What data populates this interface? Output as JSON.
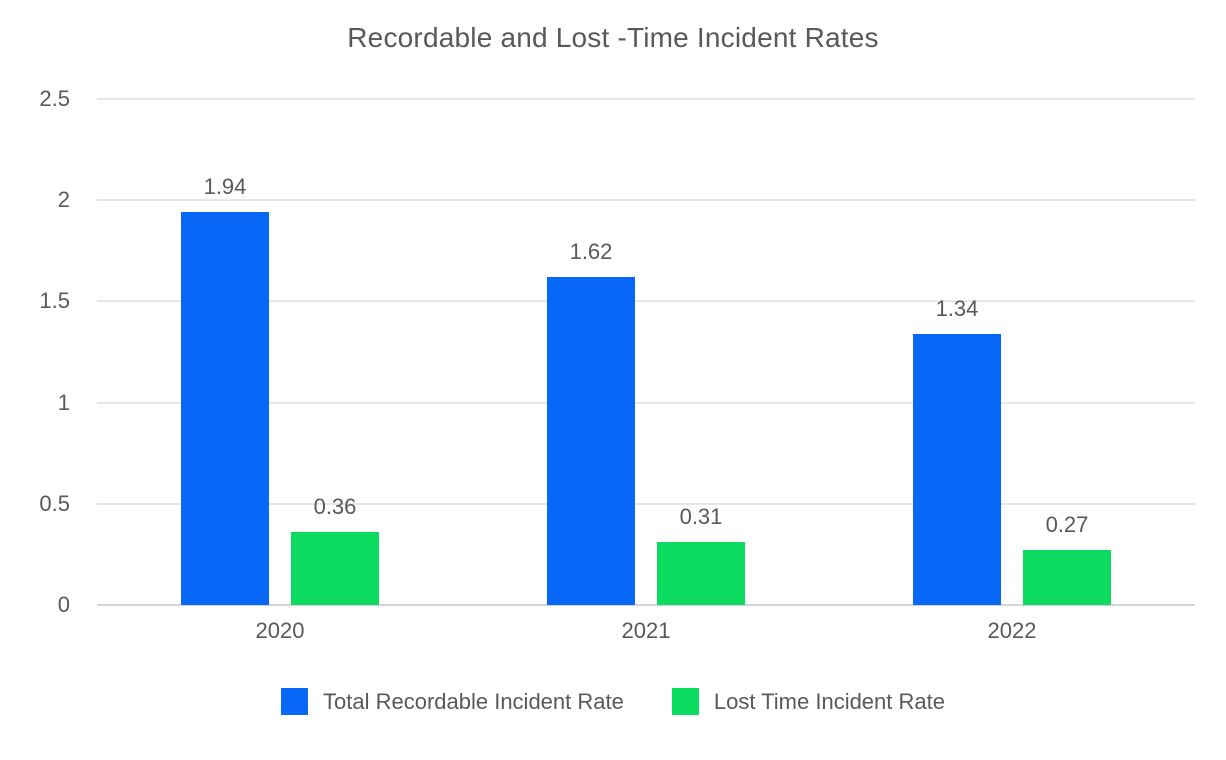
{
  "chart_data": {
    "type": "bar",
    "title": "Recordable and Lost -Time Incident Rates",
    "categories": [
      "2020",
      "2021",
      "2022"
    ],
    "series": [
      {
        "name": "Total Recordable Incident Rate",
        "color": "#0768f8",
        "values": [
          1.94,
          1.62,
          1.34
        ],
        "labels": [
          "1.94",
          "1.62",
          "1.34"
        ]
      },
      {
        "name": "Lost Time Incident Rate",
        "color": "#0bdb5e",
        "values": [
          0.36,
          0.31,
          0.27
        ],
        "labels": [
          "0.36",
          "0.31",
          "0.27"
        ]
      }
    ],
    "xlabel": "",
    "ylabel": "",
    "ylim": [
      0,
      2.5
    ],
    "y_ticks": [
      0,
      0.5,
      1,
      1.5,
      2,
      2.5
    ],
    "y_tick_labels": [
      "0",
      "0.5",
      "1",
      "1.5",
      "2",
      "2.5"
    ],
    "grid": true,
    "legend_position": "bottom",
    "colors": {
      "grid": "#e7e7e7",
      "axis_line": "#d4d4d4",
      "text": "#595959",
      "background": "#ffffff"
    }
  }
}
